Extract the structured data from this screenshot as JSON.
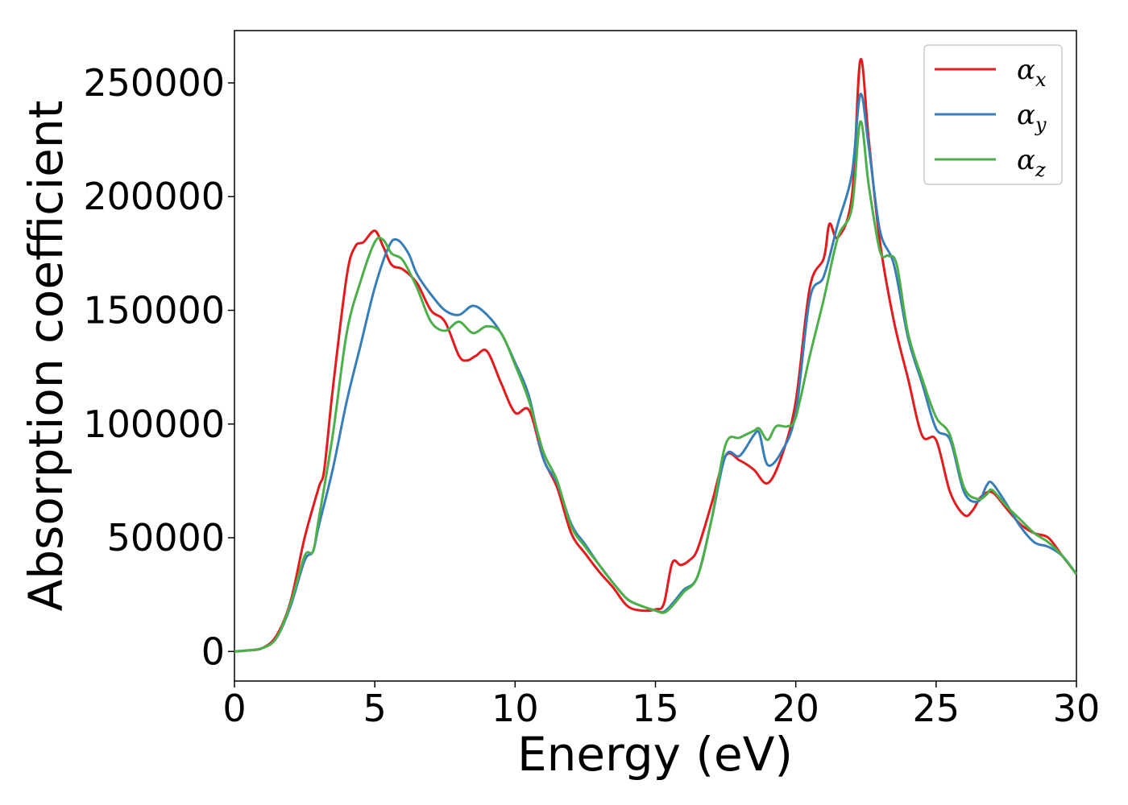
{
  "chart_data": {
    "type": "line",
    "title": "",
    "xlabel": "Energy (eV)",
    "ylabel": "Absorption coefficient",
    "xlim": [
      0,
      30
    ],
    "ylim": [
      -13000,
      273000
    ],
    "xticks": [
      0,
      5,
      10,
      15,
      20,
      25,
      30
    ],
    "yticks": [
      0,
      50000,
      100000,
      150000,
      200000,
      250000
    ],
    "grid": false,
    "legend_position": "top-right",
    "series": [
      {
        "name": "α_x",
        "label_main": "α",
        "label_sub": "x",
        "color": "#e41a1c",
        "x": [
          0,
          0.5,
          1,
          1.5,
          2,
          2.5,
          3,
          3.2,
          3.5,
          4,
          4.3,
          4.6,
          5,
          5.3,
          5.6,
          6,
          6.5,
          7,
          7.5,
          8,
          8.3,
          8.6,
          9,
          9.5,
          10,
          10.5,
          11,
          11.5,
          12,
          12.5,
          13,
          13.5,
          14,
          14.5,
          15,
          15.3,
          15.6,
          15.9,
          16.2,
          16.5,
          17,
          17.5,
          18,
          18.5,
          19,
          19.5,
          20,
          20.5,
          21,
          21.2,
          21.5,
          22,
          22.3,
          22.6,
          23,
          23.5,
          24,
          24.5,
          25,
          25.5,
          26,
          26.3,
          26.6,
          27,
          27.5,
          28,
          28.5,
          29,
          29.5,
          30
        ],
        "y": [
          0,
          500,
          1500,
          7000,
          22000,
          50000,
          72000,
          80000,
          115000,
          165000,
          178000,
          180000,
          185000,
          178000,
          170000,
          168000,
          162000,
          150000,
          145000,
          130000,
          128000,
          130000,
          132000,
          118000,
          105000,
          106000,
          85000,
          72000,
          52000,
          43000,
          35000,
          28000,
          20000,
          18000,
          18500,
          21000,
          39000,
          38000,
          40000,
          45000,
          65000,
          86000,
          84000,
          80000,
          74000,
          86000,
          110000,
          160000,
          173000,
          188000,
          182000,
          200000,
          260000,
          225000,
          180000,
          145000,
          120000,
          95000,
          93000,
          70000,
          60000,
          62000,
          68000,
          70000,
          63000,
          56000,
          52000,
          50000,
          42000,
          34000
        ]
      },
      {
        "name": "α_y",
        "label_main": "α",
        "label_sub": "y",
        "color": "#377eb8",
        "x": [
          0,
          0.5,
          1,
          1.5,
          2,
          2.5,
          2.8,
          3,
          3.5,
          4,
          4.5,
          5,
          5.5,
          5.8,
          6.2,
          6.5,
          7,
          7.5,
          8,
          8.5,
          9,
          9.5,
          10,
          10.5,
          11,
          11.5,
          12,
          12.5,
          13,
          13.5,
          14,
          14.5,
          15,
          15.3,
          15.6,
          16,
          16.5,
          17,
          17.5,
          18,
          18.5,
          18.7,
          19,
          19.5,
          20,
          20.5,
          21,
          21.5,
          22,
          22.3,
          22.6,
          23,
          23.5,
          24,
          24.5,
          25,
          25.5,
          26,
          26.5,
          26.8,
          27,
          27.5,
          28,
          28.5,
          29,
          29.5,
          30
        ],
        "y": [
          0,
          500,
          1500,
          6000,
          20000,
          40000,
          44000,
          55000,
          80000,
          110000,
          135000,
          160000,
          178000,
          181000,
          175000,
          166000,
          157000,
          150000,
          148000,
          152000,
          148000,
          140000,
          127000,
          112000,
          85000,
          74000,
          56000,
          47000,
          38000,
          30000,
          23000,
          20000,
          18000,
          17500,
          21000,
          27000,
          33000,
          58000,
          86000,
          86000,
          95000,
          96000,
          82000,
          88000,
          105000,
          155000,
          165000,
          188000,
          210000,
          245000,
          222000,
          185000,
          170000,
          138000,
          118000,
          98000,
          93000,
          70000,
          66000,
          73000,
          74000,
          65000,
          55000,
          48000,
          46000,
          42000,
          34000
        ]
      },
      {
        "name": "α_z",
        "label_main": "α",
        "label_sub": "z",
        "color": "#4daf4a",
        "x": [
          0,
          0.5,
          1,
          1.5,
          2,
          2.5,
          2.8,
          3,
          3.5,
          4,
          4.5,
          5,
          5.3,
          5.6,
          6,
          6.5,
          7,
          7.5,
          8,
          8.5,
          9,
          9.5,
          10,
          10.5,
          11,
          11.5,
          12,
          12.5,
          13,
          13.5,
          14,
          14.5,
          15,
          15.3,
          15.6,
          16,
          16.5,
          17,
          17.5,
          18,
          18.5,
          18.7,
          19,
          19.3,
          19.7,
          20,
          20.5,
          21,
          21.5,
          22,
          22.3,
          22.6,
          23,
          23.3,
          23.6,
          24,
          24.5,
          25,
          25.5,
          26,
          26.5,
          26.8,
          27,
          27.5,
          28,
          28.5,
          29,
          29.5,
          30
        ],
        "y": [
          0,
          500,
          1500,
          6000,
          21000,
          42000,
          44000,
          58000,
          95000,
          140000,
          163000,
          180000,
          181000,
          175000,
          172000,
          160000,
          145000,
          141000,
          145000,
          140000,
          143000,
          140000,
          126000,
          110000,
          88000,
          75000,
          55000,
          46000,
          38000,
          30000,
          23000,
          20000,
          18000,
          17000,
          20000,
          26000,
          33000,
          58000,
          91000,
          94000,
          97000,
          98000,
          93000,
          99000,
          99000,
          103000,
          130000,
          155000,
          182000,
          195000,
          233000,
          205000,
          176000,
          174000,
          170000,
          140000,
          120000,
          103000,
          95000,
          72000,
          67000,
          69000,
          71000,
          64000,
          58000,
          52000,
          48000,
          42000,
          34000
        ]
      }
    ]
  }
}
